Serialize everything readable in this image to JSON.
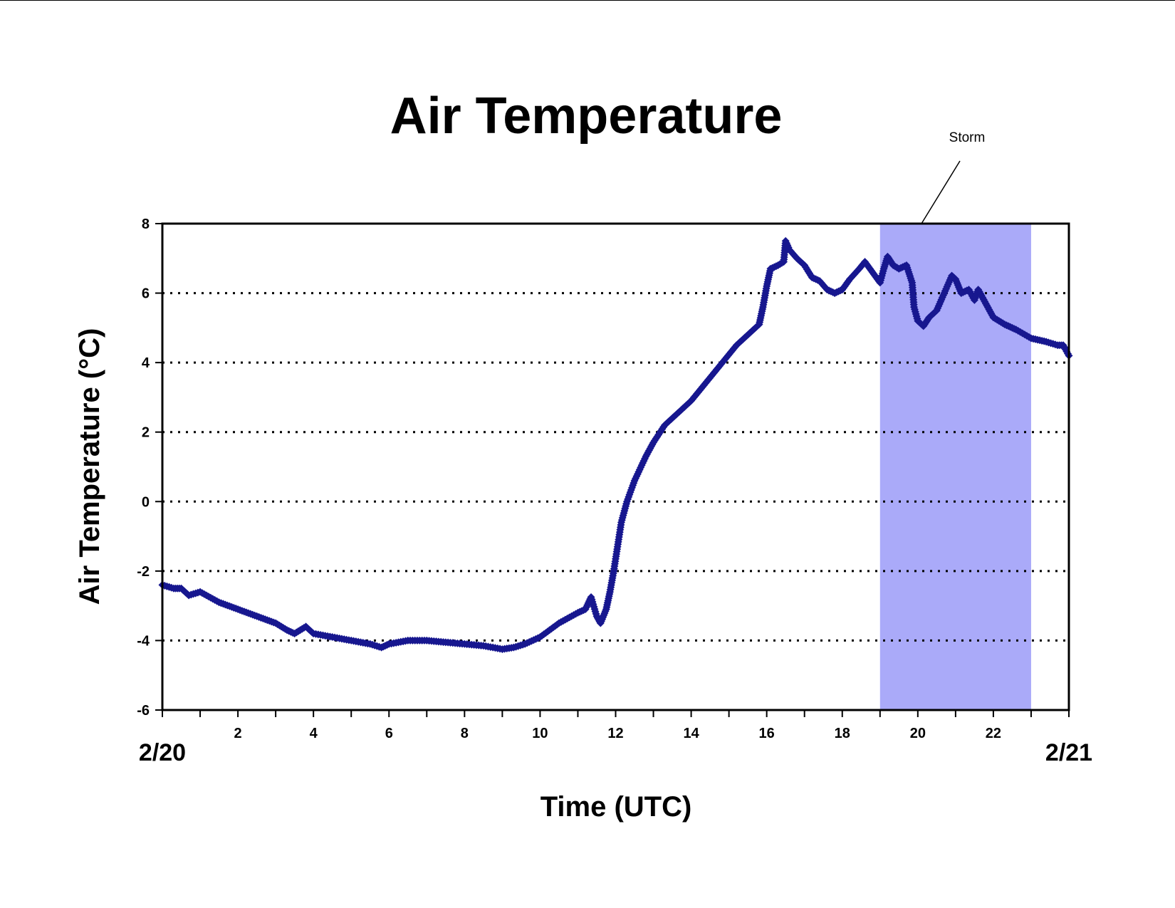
{
  "colors": {
    "marker": "#17178f",
    "storm_band": "#aaaaf9",
    "grid": "#000000",
    "frame": "#000000"
  },
  "chart_data": {
    "type": "scatter",
    "title": "Air Temperature",
    "xlabel": "Time (UTC)",
    "ylabel": "Air Temperature (°C)",
    "xlim": [
      0,
      24
    ],
    "ylim": [
      -6,
      8
    ],
    "xticks": [
      2,
      4,
      6,
      8,
      10,
      12,
      14,
      16,
      18,
      20,
      22
    ],
    "yticks": [
      -6,
      -4,
      -2,
      0,
      2,
      4,
      6,
      8
    ],
    "date_labels": {
      "start": "2/20",
      "end": "2/21"
    },
    "grid": "horizontal dotted",
    "legend": "none",
    "shaded_region": {
      "label": "Storm",
      "x_start": 19,
      "x_end": 23
    },
    "series": [
      {
        "values": [
          [
            0.0,
            -2.4
          ],
          [
            0.3,
            -2.5
          ],
          [
            0.5,
            -2.5
          ],
          [
            0.7,
            -2.7
          ],
          [
            1.0,
            -2.6
          ],
          [
            1.5,
            -2.9
          ],
          [
            2.0,
            -3.1
          ],
          [
            2.5,
            -3.3
          ],
          [
            3.0,
            -3.5
          ],
          [
            3.3,
            -3.7
          ],
          [
            3.5,
            -3.8
          ],
          [
            3.8,
            -3.6
          ],
          [
            4.0,
            -3.8
          ],
          [
            4.5,
            -3.9
          ],
          [
            5.0,
            -4.0
          ],
          [
            5.5,
            -4.1
          ],
          [
            5.8,
            -4.2
          ],
          [
            6.0,
            -4.1
          ],
          [
            6.5,
            -4.0
          ],
          [
            7.0,
            -4.0
          ],
          [
            7.5,
            -4.05
          ],
          [
            8.0,
            -4.1
          ],
          [
            8.5,
            -4.15
          ],
          [
            9.0,
            -4.25
          ],
          [
            9.3,
            -4.2
          ],
          [
            9.6,
            -4.1
          ],
          [
            10.0,
            -3.9
          ],
          [
            10.5,
            -3.5
          ],
          [
            11.0,
            -3.2
          ],
          [
            11.2,
            -3.1
          ],
          [
            11.35,
            -2.75
          ],
          [
            11.5,
            -3.3
          ],
          [
            11.6,
            -3.5
          ],
          [
            11.75,
            -3.1
          ],
          [
            11.85,
            -2.6
          ],
          [
            11.95,
            -2.0
          ],
          [
            12.05,
            -1.3
          ],
          [
            12.15,
            -0.6
          ],
          [
            12.3,
            0.0
          ],
          [
            12.5,
            0.6
          ],
          [
            12.8,
            1.3
          ],
          [
            13.0,
            1.7
          ],
          [
            13.3,
            2.2
          ],
          [
            13.6,
            2.5
          ],
          [
            14.0,
            2.9
          ],
          [
            14.3,
            3.3
          ],
          [
            14.6,
            3.7
          ],
          [
            14.9,
            4.1
          ],
          [
            15.2,
            4.5
          ],
          [
            15.6,
            4.9
          ],
          [
            15.8,
            5.1
          ],
          [
            15.9,
            5.6
          ],
          [
            16.0,
            6.2
          ],
          [
            16.1,
            6.7
          ],
          [
            16.3,
            6.8
          ],
          [
            16.45,
            6.9
          ],
          [
            16.5,
            7.5
          ],
          [
            16.6,
            7.25
          ],
          [
            16.8,
            7.0
          ],
          [
            17.0,
            6.8
          ],
          [
            17.2,
            6.45
          ],
          [
            17.4,
            6.35
          ],
          [
            17.6,
            6.1
          ],
          [
            17.8,
            6.0
          ],
          [
            18.0,
            6.1
          ],
          [
            18.2,
            6.4
          ],
          [
            18.45,
            6.7
          ],
          [
            18.6,
            6.9
          ],
          [
            18.8,
            6.6
          ],
          [
            19.0,
            6.3
          ],
          [
            19.1,
            6.7
          ],
          [
            19.2,
            7.05
          ],
          [
            19.35,
            6.8
          ],
          [
            19.5,
            6.7
          ],
          [
            19.7,
            6.8
          ],
          [
            19.85,
            6.3
          ],
          [
            19.9,
            5.6
          ],
          [
            20.0,
            5.2
          ],
          [
            20.15,
            5.05
          ],
          [
            20.3,
            5.3
          ],
          [
            20.5,
            5.5
          ],
          [
            20.7,
            6.0
          ],
          [
            20.9,
            6.5
          ],
          [
            21.0,
            6.4
          ],
          [
            21.15,
            6.0
          ],
          [
            21.35,
            6.1
          ],
          [
            21.5,
            5.8
          ],
          [
            21.6,
            6.1
          ],
          [
            21.8,
            5.7
          ],
          [
            22.0,
            5.3
          ],
          [
            22.3,
            5.1
          ],
          [
            22.6,
            4.95
          ],
          [
            23.0,
            4.7
          ],
          [
            23.4,
            4.6
          ],
          [
            23.7,
            4.5
          ],
          [
            23.85,
            4.5
          ],
          [
            24.0,
            4.2
          ]
        ]
      }
    ]
  }
}
